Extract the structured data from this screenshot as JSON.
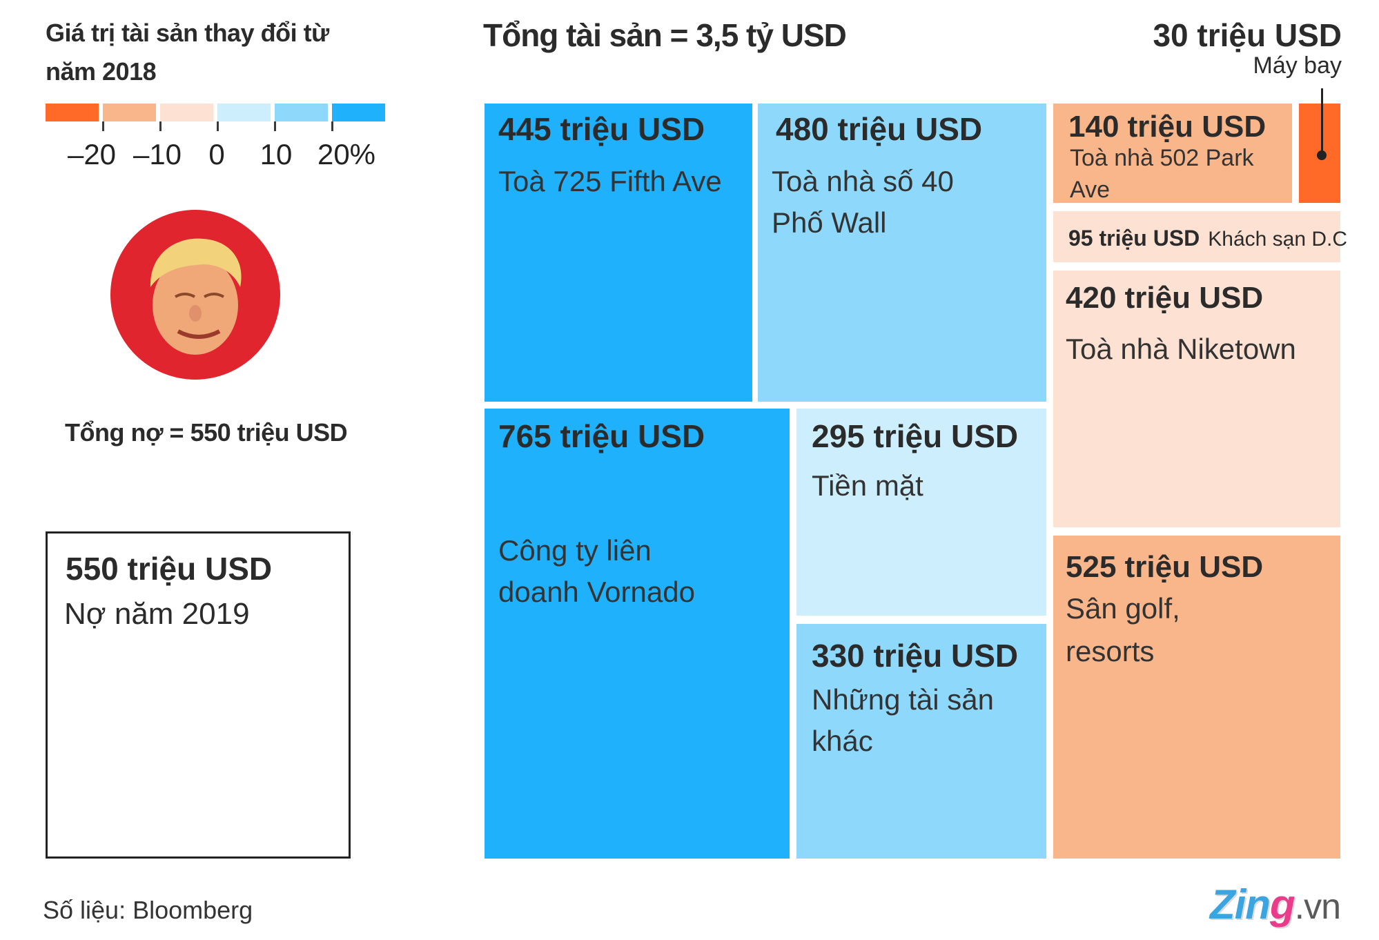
{
  "legend": {
    "title": "Giá trị tài sản thay đổi từ năm 2018",
    "colors": [
      "#ff6a28",
      "#f9b68b",
      "#fde1d2",
      "#cdeffd",
      "#8dd8fb",
      "#1fb1fb"
    ],
    "labels": [
      "–20",
      "–10",
      "0",
      "10",
      "20%"
    ]
  },
  "debt": {
    "avatar": "portrait-photo",
    "total": "Tổng nợ = 550 triệu USD",
    "box_value": "550 triệu USD",
    "box_label": "Nợ năm 2019"
  },
  "source": "Số liệu: Bloomberg",
  "logo": {
    "brand": "Zing",
    "suffix": ".vn"
  },
  "chart_data": {
    "type": "treemap",
    "title": "Tổng tài sản = 3,5 tỷ USD",
    "unit": "triệu USD",
    "color_scale": "% change in value since 2018",
    "items": [
      {
        "name": "Toà 725 Fifth Ave",
        "value": 445,
        "value_label": "445 triệu USD",
        "color": "#1fb1fb"
      },
      {
        "name": "Toà nhà số 40 Phố Wall",
        "value": 480,
        "value_label": "480 triệu USD",
        "color": "#8dd8fb"
      },
      {
        "name": "Toà nhà 502 Park Ave",
        "value": 140,
        "value_label": "140 triệu USD",
        "color": "#f9b68b"
      },
      {
        "name": "Máy bay",
        "value": 30,
        "value_label": "30 triệu USD",
        "color": "#ff6a28"
      },
      {
        "name": "Khách sạn D.C",
        "value": 95,
        "value_label": "95 triệu USD",
        "color": "#fde1d2"
      },
      {
        "name": "Toà nhà Niketown",
        "value": 420,
        "value_label": "420 triệu USD",
        "color": "#fde1d2"
      },
      {
        "name": "Công ty liên doanh Vornado",
        "value": 765,
        "value_label": "765 triệu USD",
        "color": "#1fb1fb"
      },
      {
        "name": "Tiền mặt",
        "value": 295,
        "value_label": "295 triệu USD",
        "color": "#cdeffd"
      },
      {
        "name": "Những tài sản khác",
        "value": 330,
        "value_label": "330 triệu USD",
        "color": "#8dd8fb"
      },
      {
        "name": "Sân golf, resorts",
        "value": 525,
        "value_label": "525 triệu USD",
        "color": "#f9b68b"
      }
    ]
  }
}
